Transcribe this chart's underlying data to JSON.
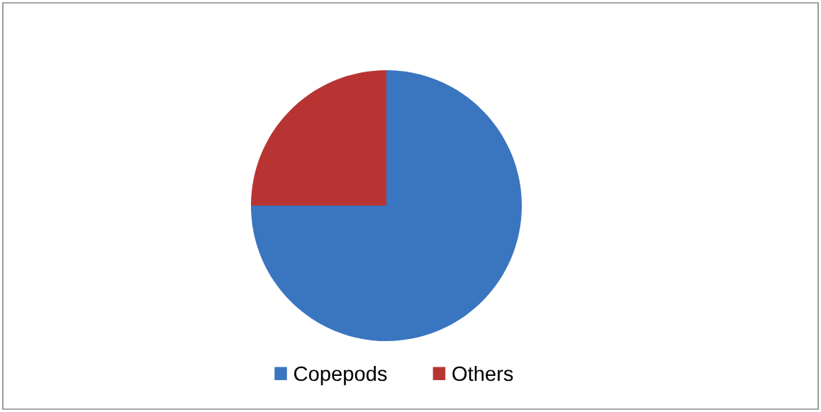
{
  "chart_data": {
    "type": "pie",
    "categories": [
      "Copepods",
      "Others"
    ],
    "values": [
      75,
      25
    ],
    "colors": [
      "#3a75c0",
      "#b83433"
    ],
    "legend": "bottom"
  }
}
